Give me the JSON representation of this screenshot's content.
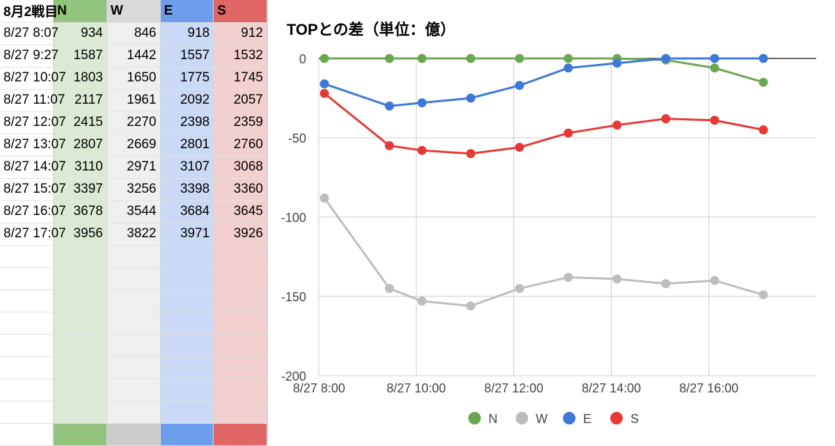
{
  "sheet": {
    "headers": [
      "8月2戦目",
      "N",
      "W",
      "E",
      "S"
    ],
    "rows": [
      {
        "time": "8/27 8:07",
        "N": "934",
        "W": "846",
        "E": "918",
        "S": "912"
      },
      {
        "time": "8/27 9:27",
        "N": "1587",
        "W": "1442",
        "E": "1557",
        "S": "1532"
      },
      {
        "time": "8/27 10:07",
        "N": "1803",
        "W": "1650",
        "E": "1775",
        "S": "1745"
      },
      {
        "time": "8/27 11:07",
        "N": "2117",
        "W": "1961",
        "E": "2092",
        "S": "2057"
      },
      {
        "time": "8/27 12:07",
        "N": "2415",
        "W": "2270",
        "E": "2398",
        "S": "2359"
      },
      {
        "time": "8/27 13:07",
        "N": "2807",
        "W": "2669",
        "E": "2801",
        "S": "2760"
      },
      {
        "time": "8/27 14:07",
        "N": "3110",
        "W": "2971",
        "E": "3107",
        "S": "3068"
      },
      {
        "time": "8/27 15:07",
        "N": "3397",
        "W": "3256",
        "E": "3398",
        "S": "3360"
      },
      {
        "time": "8/27 16:07",
        "N": "3678",
        "W": "3544",
        "E": "3684",
        "S": "3645"
      },
      {
        "time": "8/27 17:07",
        "N": "3956",
        "W": "3822",
        "E": "3971",
        "S": "3926"
      }
    ]
  },
  "chart_data": {
    "type": "line",
    "title": "TOPとの差（単位：億）",
    "x": [
      "8/27 8:07",
      "8/27 9:27",
      "8/27 10:07",
      "8/27 11:07",
      "8/27 12:07",
      "8/27 13:07",
      "8/27 14:07",
      "8/27 15:07",
      "8/27 16:07",
      "8/27 17:07"
    ],
    "x_tick_labels": [
      "8/27 8:00",
      "8/27 10:00",
      "8/27 12:00",
      "8/27 14:00",
      "8/27 16:00"
    ],
    "y_tick_labels": [
      "0",
      "-50",
      "-100",
      "-150",
      "-200"
    ],
    "ylim": [
      -200,
      0
    ],
    "grid": true,
    "legend_position": "bottom",
    "series": [
      {
        "name": "N",
        "color": "#6aa84f",
        "values": [
          0,
          0,
          0,
          0,
          0,
          0,
          0,
          -1,
          -6,
          -15
        ]
      },
      {
        "name": "W",
        "color": "#bdbdbd",
        "values": [
          -88,
          -145,
          -153,
          -156,
          -145,
          -138,
          -139,
          -142,
          -140,
          -149
        ]
      },
      {
        "name": "E",
        "color": "#3c78d8",
        "values": [
          -16,
          -30,
          -28,
          -25,
          -17,
          -6,
          -3,
          0,
          0,
          0
        ]
      },
      {
        "name": "S",
        "color": "#e53935",
        "values": [
          -22,
          -55,
          -58,
          -60,
          -56,
          -47,
          -42,
          -38,
          -39,
          -45
        ]
      }
    ]
  }
}
